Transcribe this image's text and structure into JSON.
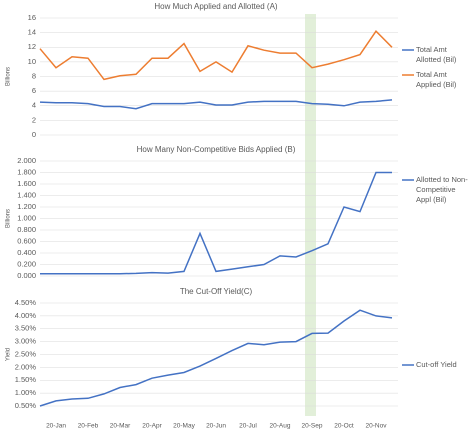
{
  "chart_data": [
    {
      "type": "line",
      "title": "How Much Applied and Allotted (A)",
      "y_label": "Billions",
      "ylim": [
        0,
        16
      ],
      "yticks": [
        0,
        2,
        4,
        6,
        8,
        10,
        12,
        14,
        16
      ],
      "grid": true,
      "series": [
        {
          "name": "Total Amt Allotted (Bil)",
          "color": "#4472c4",
          "values": [
            4.5,
            4.4,
            4.4,
            4.3,
            3.9,
            3.9,
            3.6,
            4.3,
            4.3,
            4.3,
            4.5,
            4.1,
            4.1,
            4.5,
            4.6,
            4.6,
            4.6,
            4.3,
            4.2,
            4.0,
            4.5,
            4.6,
            4.8
          ]
        },
        {
          "name": "Total Amt Applied (Bil)",
          "color": "#ed7d31",
          "values": [
            11.8,
            9.2,
            10.7,
            10.5,
            7.6,
            8.1,
            8.3,
            10.5,
            10.5,
            12.5,
            8.7,
            10.0,
            8.6,
            12.2,
            11.6,
            11.2,
            11.2,
            9.2,
            9.7,
            10.3,
            11.0,
            14.2,
            12.0
          ]
        }
      ]
    },
    {
      "type": "line",
      "title": "How Many Non-Competitive Bids Applied (B)",
      "y_label": "Billions",
      "ylim": [
        0,
        2
      ],
      "grid": true,
      "yticks": [
        {
          "value": 0,
          "label": "0.000"
        },
        {
          "value": 0.2,
          "label": "0.200"
        },
        {
          "value": 0.4,
          "label": "0.400"
        },
        {
          "value": 0.6,
          "label": "0.600"
        },
        {
          "value": 0.8,
          "label": "0.800"
        },
        {
          "value": 1,
          "label": "1.000"
        },
        {
          "value": 1.2,
          "label": "1.200"
        },
        {
          "value": 1.4,
          "label": "1.400"
        },
        {
          "value": 1.6,
          "label": "1.600"
        },
        {
          "value": 1.8,
          "label": "1.800"
        },
        {
          "value": 2,
          "label": "2.000"
        }
      ],
      "series": [
        {
          "name": "Allotted to Non-Competitive Appl (Bil)",
          "color": "#4472c4",
          "values": [
            0.04,
            0.04,
            0.04,
            0.04,
            0.04,
            0.04,
            0.045,
            0.06,
            0.05,
            0.08,
            0.74,
            0.08,
            0.12,
            0.16,
            0.2,
            0.35,
            0.33,
            0.44,
            0.56,
            1.2,
            1.12,
            1.8,
            1.8
          ]
        }
      ]
    },
    {
      "type": "line",
      "title": "The Cut-Off Yield(C)",
      "y_label": "Yield",
      "ylim": [
        0.5,
        4.5
      ],
      "grid": true,
      "yticks": [
        {
          "value": 0.5,
          "label": "0.50%"
        },
        {
          "value": 1,
          "label": "1.00%"
        },
        {
          "value": 1.5,
          "label": "1.50%"
        },
        {
          "value": 2,
          "label": "2.00%"
        },
        {
          "value": 2.5,
          "label": "2.50%"
        },
        {
          "value": 3,
          "label": "3.00%"
        },
        {
          "value": 3.5,
          "label": "3.50%"
        },
        {
          "value": 4,
          "label": "4.00%"
        },
        {
          "value": 4.5,
          "label": "4.50%"
        }
      ],
      "categories": [
        null,
        "20-Jan",
        null,
        "20-Feb",
        null,
        "20-Mar",
        null,
        "20-Apr",
        null,
        "20-May",
        null,
        "20-Jun",
        null,
        "20-Jul",
        null,
        "20-Aug",
        null,
        "20-Sep",
        null,
        "20-Oct",
        null,
        "20-Nov",
        null
      ],
      "series": [
        {
          "name": "Cut-off Yield",
          "color": "#4472c4",
          "values": [
            0.5,
            0.7,
            0.77,
            0.8,
            0.97,
            1.22,
            1.33,
            1.58,
            1.7,
            1.8,
            2.05,
            2.35,
            2.65,
            2.93,
            2.88,
            2.98,
            3.0,
            3.32,
            3.33,
            3.8,
            4.22,
            4.0,
            3.92
          ]
        }
      ]
    }
  ]
}
